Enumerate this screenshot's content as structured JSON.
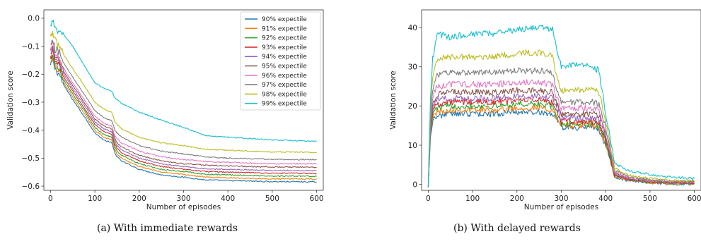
{
  "colors": [
    "#1f77b4",
    "#ff7f0e",
    "#2ca02c",
    "#d62728",
    "#9467bd",
    "#8c564b",
    "#e377c2",
    "#7f7f7f",
    "#bcbd22",
    "#17becf"
  ],
  "chart_data": [
    {
      "type": "line",
      "caption": "(a) With immediate rewards",
      "xlabel": "Number of episodes",
      "ylabel": "Validation score",
      "xlim": [
        -15,
        615
      ],
      "ylim": [
        -0.615,
        0.03
      ],
      "xticks": [
        0,
        100,
        200,
        300,
        400,
        500,
        600
      ],
      "xtick_labels": [
        "0",
        "100",
        "200",
        "300",
        "400",
        "500",
        "600"
      ],
      "yticks": [
        0.0,
        -0.1,
        -0.2,
        -0.3,
        -0.4,
        -0.5,
        -0.6
      ],
      "ytick_labels": [
        "0.0",
        "−0.1",
        "−0.2",
        "−0.3",
        "−0.4",
        "−0.5",
        "−0.6"
      ],
      "legend_position": "top-right",
      "legend": [
        "90% expectile",
        "91% expectile",
        "92% expectile",
        "93% expectile",
        "94% expectile",
        "95% expectile",
        "96% expectile",
        "97% expectile",
        "98% expectile",
        "99% expectile"
      ],
      "x": [
        0,
        5,
        10,
        20,
        30,
        50,
        80,
        100,
        120,
        138,
        145,
        150,
        160,
        200,
        250,
        300,
        350,
        400,
        450,
        500,
        550,
        600
      ],
      "series": [
        {
          "name": "90% expectile",
          "values": [
            -0.17,
            -0.15,
            -0.18,
            -0.2,
            -0.24,
            -0.29,
            -0.36,
            -0.41,
            -0.435,
            -0.445,
            -0.48,
            -0.495,
            -0.51,
            -0.54,
            -0.56,
            -0.568,
            -0.578,
            -0.58,
            -0.582,
            -0.584,
            -0.584,
            -0.585
          ]
        },
        {
          "name": "91% expectile",
          "values": [
            -0.16,
            -0.14,
            -0.17,
            -0.19,
            -0.23,
            -0.28,
            -0.35,
            -0.4,
            -0.425,
            -0.435,
            -0.47,
            -0.485,
            -0.5,
            -0.53,
            -0.55,
            -0.558,
            -0.568,
            -0.57,
            -0.572,
            -0.574,
            -0.574,
            -0.575
          ]
        },
        {
          "name": "92% expectile",
          "values": [
            -0.15,
            -0.13,
            -0.16,
            -0.18,
            -0.22,
            -0.27,
            -0.34,
            -0.39,
            -0.415,
            -0.425,
            -0.46,
            -0.475,
            -0.49,
            -0.52,
            -0.54,
            -0.548,
            -0.558,
            -0.56,
            -0.562,
            -0.564,
            -0.564,
            -0.565
          ]
        },
        {
          "name": "93% expectile",
          "values": [
            -0.14,
            -0.12,
            -0.15,
            -0.17,
            -0.21,
            -0.26,
            -0.33,
            -0.38,
            -0.405,
            -0.415,
            -0.45,
            -0.465,
            -0.48,
            -0.51,
            -0.53,
            -0.54,
            -0.548,
            -0.55,
            -0.552,
            -0.554,
            -0.554,
            -0.555
          ]
        },
        {
          "name": "94% expectile",
          "values": [
            -0.13,
            -0.11,
            -0.14,
            -0.16,
            -0.2,
            -0.25,
            -0.32,
            -0.37,
            -0.395,
            -0.405,
            -0.44,
            -0.455,
            -0.47,
            -0.5,
            -0.52,
            -0.53,
            -0.538,
            -0.54,
            -0.542,
            -0.544,
            -0.544,
            -0.545
          ]
        },
        {
          "name": "95% expectile",
          "values": [
            -0.12,
            -0.1,
            -0.13,
            -0.15,
            -0.19,
            -0.24,
            -0.31,
            -0.36,
            -0.385,
            -0.395,
            -0.43,
            -0.445,
            -0.46,
            -0.49,
            -0.51,
            -0.52,
            -0.525,
            -0.528,
            -0.53,
            -0.532,
            -0.532,
            -0.533
          ]
        },
        {
          "name": "96% expectile",
          "values": [
            -0.11,
            -0.09,
            -0.12,
            -0.14,
            -0.18,
            -0.23,
            -0.3,
            -0.35,
            -0.375,
            -0.385,
            -0.42,
            -0.43,
            -0.445,
            -0.475,
            -0.495,
            -0.505,
            -0.512,
            -0.515,
            -0.518,
            -0.52,
            -0.52,
            -0.52
          ]
        },
        {
          "name": "97% expectile",
          "values": [
            -0.1,
            -0.08,
            -0.11,
            -0.12,
            -0.16,
            -0.21,
            -0.28,
            -0.33,
            -0.355,
            -0.365,
            -0.4,
            -0.41,
            -0.425,
            -0.455,
            -0.475,
            -0.485,
            -0.495,
            -0.5,
            -0.502,
            -0.504,
            -0.505,
            -0.505
          ]
        },
        {
          "name": "98% expectile",
          "values": [
            -0.07,
            -0.05,
            -0.08,
            -0.1,
            -0.13,
            -0.18,
            -0.25,
            -0.3,
            -0.325,
            -0.335,
            -0.37,
            -0.38,
            -0.395,
            -0.425,
            -0.445,
            -0.455,
            -0.468,
            -0.472,
            -0.475,
            -0.478,
            -0.478,
            -0.48
          ]
        },
        {
          "name": "99% expectile",
          "values": [
            -0.03,
            0.0,
            -0.04,
            -0.05,
            -0.06,
            -0.1,
            -0.18,
            -0.23,
            -0.25,
            -0.26,
            -0.285,
            -0.29,
            -0.305,
            -0.335,
            -0.365,
            -0.39,
            -0.42,
            -0.425,
            -0.43,
            -0.435,
            -0.437,
            -0.44
          ]
        }
      ]
    },
    {
      "type": "line",
      "caption": "(b) With delayed rewards",
      "xlabel": "Number of episodes",
      "ylabel": "Validation score",
      "xlim": [
        -15,
        615
      ],
      "ylim": [
        -1.5,
        44.5
      ],
      "xticks": [
        0,
        100,
        200,
        300,
        400,
        500,
        600
      ],
      "xtick_labels": [
        "0",
        "100",
        "200",
        "300",
        "400",
        "500",
        "600"
      ],
      "yticks": [
        0,
        10,
        20,
        30,
        40
      ],
      "ytick_labels": [
        "0",
        "10",
        "20",
        "30",
        "40"
      ],
      "x": [
        0,
        5,
        10,
        20,
        50,
        100,
        150,
        200,
        250,
        280,
        290,
        300,
        340,
        370,
        385,
        400,
        410,
        420,
        450,
        500,
        550,
        600
      ],
      "series": [
        {
          "name": "90% expectile",
          "values": [
            -0.5,
            12,
            16,
            17.5,
            18,
            18,
            18,
            18.5,
            18.5,
            18,
            16,
            14.5,
            14.5,
            14.5,
            14,
            10,
            6,
            1.8,
            1,
            0.4,
            0.1,
            0.1
          ]
        },
        {
          "name": "91% expectile",
          "values": [
            -0.5,
            12.5,
            17,
            18.5,
            19,
            19,
            19,
            19.5,
            19.5,
            19,
            17,
            15,
            15,
            15,
            14.5,
            10.5,
            6.5,
            2,
            1.1,
            0.5,
            0.2,
            0.2
          ]
        },
        {
          "name": "92% expectile",
          "values": [
            -0.5,
            13,
            18,
            19.5,
            20,
            20,
            20,
            20.5,
            20.5,
            20,
            17.5,
            15.5,
            15.5,
            15.5,
            15,
            11,
            7,
            2.2,
            1.2,
            0.6,
            0.3,
            0.3
          ]
        },
        {
          "name": "93% expectile",
          "values": [
            -0.5,
            13.5,
            19,
            20.5,
            21,
            21,
            21,
            21.5,
            21.5,
            21,
            18.5,
            16,
            16,
            16,
            15.5,
            11.5,
            7.5,
            2.4,
            1.3,
            0.7,
            0.4,
            0.4
          ]
        },
        {
          "name": "94% expectile",
          "values": [
            -0.5,
            14,
            20,
            21.5,
            22,
            22,
            22,
            22.5,
            22.5,
            22,
            19.5,
            17,
            17,
            17,
            16.5,
            12,
            8,
            2.6,
            1.4,
            0.8,
            0.5,
            0.5
          ]
        },
        {
          "name": "95% expectile",
          "values": [
            -0.5,
            15,
            21,
            23,
            23.5,
            23.5,
            23.5,
            24,
            24,
            23.5,
            20.5,
            18,
            18,
            18,
            17.5,
            12.5,
            8.5,
            2.9,
            1.6,
            0.9,
            0.6,
            0.6
          ]
        },
        {
          "name": "96% expectile",
          "values": [
            -0.5,
            16,
            22.5,
            25,
            25.5,
            25.5,
            25.5,
            26,
            26,
            25.5,
            22,
            19.5,
            19.5,
            19.5,
            19,
            13.5,
            9,
            3.2,
            1.8,
            1,
            0.7,
            0.7
          ]
        },
        {
          "name": "97% expectile",
          "values": [
            -0.5,
            17,
            24.5,
            28,
            28.5,
            28.5,
            28.5,
            29,
            29,
            28.5,
            24,
            21,
            21,
            21,
            20.5,
            14.5,
            9.5,
            3.6,
            2,
            1.2,
            0.8,
            0.8
          ]
        },
        {
          "name": "98% expectile",
          "values": [
            -0.5,
            19,
            28,
            32,
            32.5,
            32.5,
            32.5,
            33.5,
            33.5,
            33,
            27,
            24,
            24,
            24,
            23.5,
            16,
            10.5,
            4.2,
            2.4,
            1.5,
            1,
            1
          ]
        },
        {
          "name": "99% expectile",
          "values": [
            -0.5,
            22,
            32,
            38.5,
            37.5,
            38.5,
            38.5,
            39.5,
            40,
            39.5,
            34,
            30,
            30.5,
            30,
            29,
            18,
            12,
            5.5,
            3.5,
            2.5,
            1.8,
            1.5
          ]
        }
      ]
    }
  ]
}
